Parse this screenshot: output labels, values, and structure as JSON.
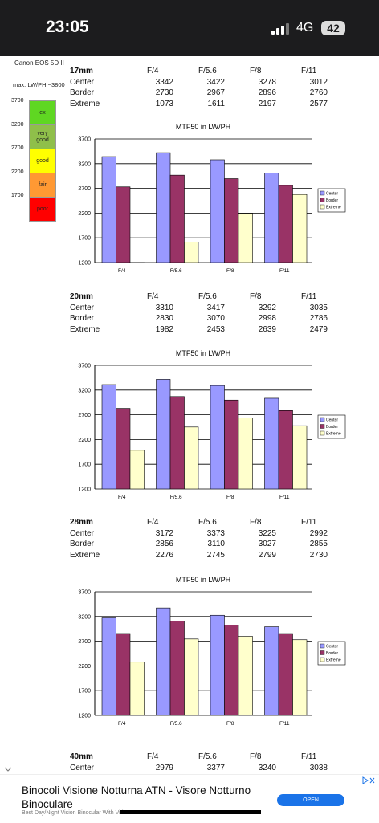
{
  "status_bar": {
    "time": "23:05",
    "network": "4G",
    "battery": "42"
  },
  "camera": "Canon EOS 5D II",
  "max_label": "max. LW/PH ~3800",
  "scale": {
    "ticks": [
      3700,
      3200,
      2700,
      2200,
      1700
    ],
    "bands": [
      {
        "label": "ex",
        "color": "#5fd722"
      },
      {
        "label": "very good",
        "color": "#8fbf4a"
      },
      {
        "label": "good",
        "color": "#ffff00"
      },
      {
        "label": "fair",
        "color": "#ff9933"
      },
      {
        "label": "poor",
        "color": "#ff0000"
      }
    ]
  },
  "chart_data": [
    {
      "type": "bar",
      "lens": "17mm",
      "title": "MTF50 in LW/PH",
      "categories": [
        "F/4",
        "F/5.6",
        "F/8",
        "F/11"
      ],
      "series": [
        {
          "name": "Center",
          "color": "#9999ff",
          "values": [
            3342,
            3422,
            3278,
            3012
          ]
        },
        {
          "name": "Border",
          "color": "#993366",
          "values": [
            2730,
            2967,
            2896,
            2760
          ]
        },
        {
          "name": "Extreme",
          "color": "#ffffcc",
          "values": [
            1073,
            1611,
            2197,
            2577
          ]
        }
      ],
      "ylim": [
        1200,
        3700
      ],
      "yticks": [
        1200,
        1700,
        2200,
        2700,
        3200,
        3700
      ],
      "grid": true
    },
    {
      "type": "bar",
      "lens": "20mm",
      "title": "MTF50 in LW/PH",
      "categories": [
        "F/4",
        "F/5.6",
        "F/8",
        "F/11"
      ],
      "series": [
        {
          "name": "Center",
          "color": "#9999ff",
          "values": [
            3310,
            3417,
            3292,
            3035
          ]
        },
        {
          "name": "Border",
          "color": "#993366",
          "values": [
            2830,
            3070,
            2998,
            2786
          ]
        },
        {
          "name": "Extreme",
          "color": "#ffffcc",
          "values": [
            1982,
            2453,
            2639,
            2479
          ]
        }
      ],
      "ylim": [
        1200,
        3700
      ],
      "yticks": [
        1200,
        1700,
        2200,
        2700,
        3200,
        3700
      ],
      "grid": true
    },
    {
      "type": "bar",
      "lens": "28mm",
      "title": "MTF50 in LW/PH",
      "categories": [
        "F/4",
        "F/5.6",
        "F/8",
        "F/11"
      ],
      "series": [
        {
          "name": "Center",
          "color": "#9999ff",
          "values": [
            3172,
            3373,
            3225,
            2992
          ]
        },
        {
          "name": "Border",
          "color": "#993366",
          "values": [
            2856,
            3110,
            3027,
            2855
          ]
        },
        {
          "name": "Extreme",
          "color": "#ffffcc",
          "values": [
            2276,
            2745,
            2799,
            2730
          ]
        }
      ],
      "ylim": [
        1200,
        3700
      ],
      "yticks": [
        1200,
        1700,
        2200,
        2700,
        3200,
        3700
      ],
      "grid": true
    }
  ],
  "partial_table": {
    "lens": "40mm",
    "headers": [
      "F/4",
      "F/5.6",
      "F/8",
      "F/11"
    ],
    "rows": [
      {
        "label": "Center",
        "values": [
          2979,
          3377,
          3240,
          3038
        ]
      }
    ]
  },
  "ad": {
    "title": "Binocoli Visione Notturna ATN - Visore Notturno Binoculare",
    "subtitle": "Best Day/Night Vision Binocular With Video",
    "button": "OPEN"
  }
}
